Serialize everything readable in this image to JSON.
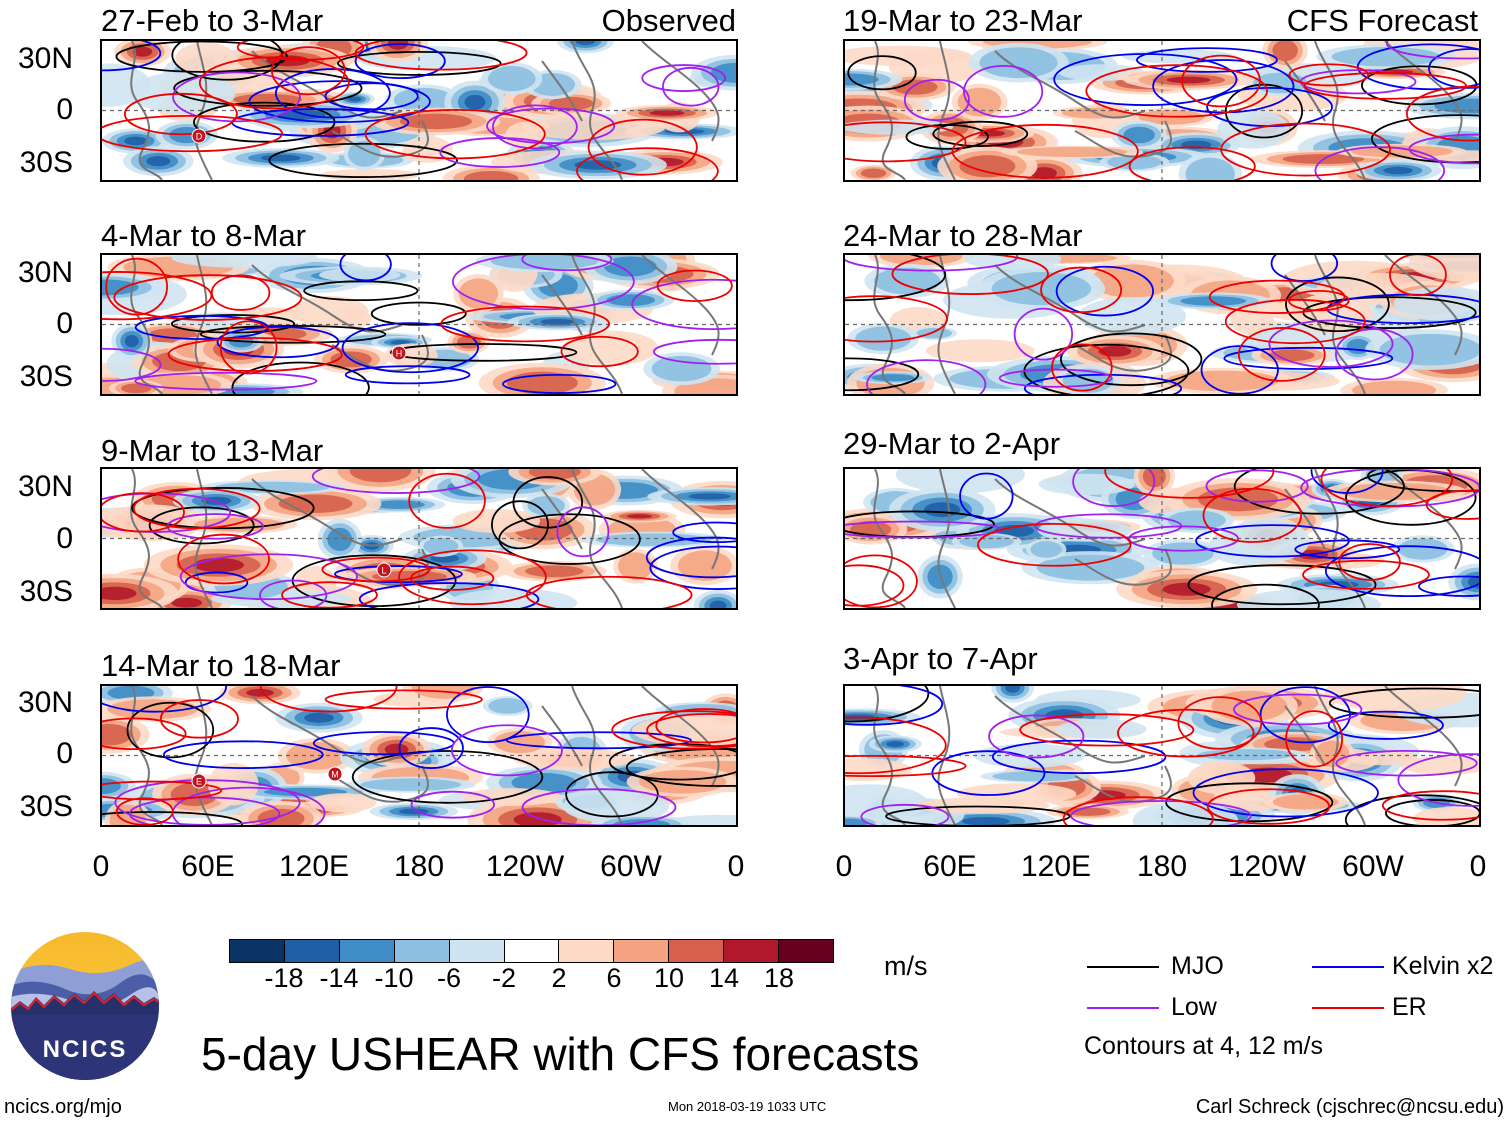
{
  "panels": [
    {
      "title": "27-Feb to 3-Mar",
      "tag": "Observed",
      "markers": [
        {
          "letter": "D"
        }
      ]
    },
    {
      "title": "4-Mar to 8-Mar",
      "tag": "",
      "markers": [
        {
          "letter": "H"
        }
      ]
    },
    {
      "title": "9-Mar to 13-Mar",
      "tag": "",
      "markers": [
        {
          "letter": "L"
        }
      ]
    },
    {
      "title": "14-Mar to 18-Mar",
      "tag": "",
      "markers": [
        {
          "letter": "E"
        },
        {
          "letter": "M"
        }
      ]
    },
    {
      "title": "19-Mar to 23-Mar",
      "tag": "CFS Forecast",
      "markers": []
    },
    {
      "title": "24-Mar to 28-Mar",
      "tag": "",
      "markers": []
    },
    {
      "title": "29-Mar to 2-Apr",
      "tag": "",
      "markers": []
    },
    {
      "title": "3-Apr to 7-Apr",
      "tag": "",
      "markers": []
    }
  ],
  "lat_labels": [
    "30N",
    "0",
    "30S"
  ],
  "lon_labels": [
    "0",
    "60E",
    "120E",
    "180",
    "120W",
    "60W",
    "0"
  ],
  "colorbar": {
    "colors": [
      "#0a3466",
      "#1f5fa6",
      "#3f8cc6",
      "#8cbfe0",
      "#cfe4f1",
      "#ffffff",
      "#fdd9c6",
      "#f4a482",
      "#d6604d",
      "#b2182b",
      "#67001f"
    ],
    "tick_labels": [
      "-18",
      "-14",
      "-10",
      "-6",
      "-2",
      "2",
      "6",
      "10",
      "14",
      "18"
    ],
    "units": "m/s"
  },
  "legend": {
    "items": [
      {
        "label": "MJO",
        "color": "#000000"
      },
      {
        "label": "Kelvin x2",
        "color": "#0000ee"
      },
      {
        "label": "Low",
        "color": "#a020f0"
      },
      {
        "label": "ER",
        "color": "#ee0000"
      }
    ],
    "note": "Contours at 4, 12 m/s"
  },
  "logo": {
    "text": "NCICS"
  },
  "main_title": "5-day USHEAR with CFS forecasts",
  "footer": {
    "url": "ncics.org/mjo",
    "timestamp": "Mon 2018-03-19 1033 UTC",
    "credit": "Carl Schreck (cjschrec@ncsu.edu)"
  }
}
